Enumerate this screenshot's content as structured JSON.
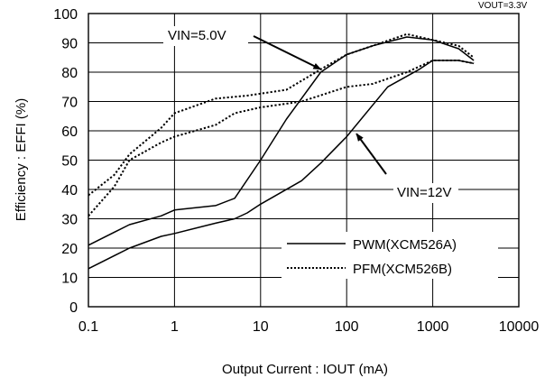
{
  "chart_data": {
    "type": "line",
    "xscale": "log",
    "xlim": [
      0.1,
      10000
    ],
    "ylim": [
      0,
      100
    ],
    "xlabel": "Output Current : IOUT (mA)",
    "ylabel": "Efficiency : EFFI (%)",
    "corner_note": "VOUT=3.3V",
    "x_ticks": [
      0.1,
      1,
      10,
      100,
      1000,
      10000
    ],
    "x_tick_labels": [
      "0.1",
      "1",
      "10",
      "100",
      "1000",
      "10000"
    ],
    "y_ticks": [
      0,
      10,
      20,
      30,
      40,
      50,
      60,
      70,
      80,
      90,
      100
    ],
    "y_tick_labels": [
      "0",
      "10",
      "20",
      "30",
      "40",
      "50",
      "60",
      "70",
      "80",
      "90",
      "100"
    ],
    "grid": true,
    "annotations": [
      {
        "text": "VIN=5.0V",
        "points_to": [
          50,
          81
        ]
      },
      {
        "text": "VIN=12V",
        "points_to": [
          130,
          59
        ]
      }
    ],
    "legend": {
      "placement": "bottom-right",
      "entries": [
        {
          "label": "PWM(XCM526A)",
          "style": "solid"
        },
        {
          "label": "PFM(XCM526B)",
          "style": "dotted"
        }
      ]
    },
    "series": [
      {
        "mode": "PWM",
        "vin": "5.0V",
        "style": "solid",
        "x": [
          0.1,
          0.3,
          0.7,
          1,
          3,
          5,
          10,
          20,
          50,
          100,
          200,
          500,
          1000,
          2000,
          3000
        ],
        "y": [
          21,
          28,
          31,
          33,
          34.5,
          37,
          50,
          64,
          80,
          86,
          89,
          92,
          91,
          88,
          84
        ]
      },
      {
        "mode": "PFM",
        "vin": "5.0V",
        "style": "dotted",
        "x": [
          0.1,
          0.2,
          0.3,
          0.7,
          1,
          3,
          7,
          20,
          50,
          100,
          200,
          500,
          1000,
          2000,
          3000
        ],
        "y": [
          38,
          45,
          52,
          61,
          66,
          71,
          72,
          74,
          81,
          86,
          89,
          93,
          91,
          89,
          85
        ]
      },
      {
        "mode": "PWM",
        "vin": "12V",
        "style": "solid",
        "x": [
          0.1,
          0.3,
          0.7,
          1,
          3,
          5,
          7,
          10,
          30,
          50,
          100,
          300,
          700,
          1000,
          2000,
          3000
        ],
        "y": [
          13,
          20,
          24,
          25,
          28.5,
          30,
          32,
          35,
          43,
          49,
          58,
          75,
          81,
          84,
          84,
          83
        ]
      },
      {
        "mode": "PFM",
        "vin": "12V",
        "style": "dotted",
        "x": [
          0.1,
          0.2,
          0.3,
          0.7,
          1,
          3,
          5,
          10,
          30,
          100,
          200,
          500,
          1000,
          2000,
          3000
        ],
        "y": [
          31,
          41,
          50,
          56,
          58,
          62,
          66,
          68,
          70,
          75,
          76,
          80,
          84,
          84,
          83
        ]
      }
    ]
  }
}
